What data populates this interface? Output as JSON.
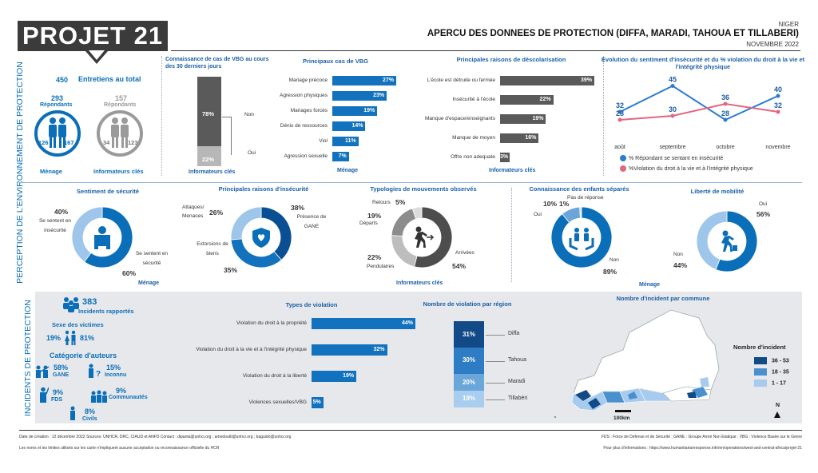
{
  "header": {
    "logo": "PROJET 21",
    "country": "NIGER",
    "title": "APERCU DES DONNEES DE PROTECTION (DIFFA, MARADI, TAHOUA ET TILLABERI)",
    "date": "NOVEMBRE 2022"
  },
  "side_labels": {
    "top": "PERCEPTION DE L'ENVIRONNEMENT DE PROTECTION",
    "bottom": "INCIDENTS DE PROTECTION"
  },
  "entretiens": {
    "total": "450",
    "total_label": "Entretiens au total",
    "menage_count": "293",
    "menage_sub": "Répondants",
    "ki_count": "157",
    "ki_sub": "Répondants",
    "menage_f": "126",
    "menage_m": "167",
    "ki_f": "34",
    "ki_m": "123",
    "menage_label": "Ménage",
    "ki_label": "Informateurs clés"
  },
  "vbg_knowledge": {
    "title": "Connaissance de cas de VBG au cours des 30 derniers jours",
    "non": "78%",
    "non_label": "Non",
    "oui": "22%",
    "oui_label": "Oui",
    "non_value": 78,
    "oui_value": 22,
    "footer": "Informateurs clés"
  },
  "vbg_cases": {
    "title": "Principaux cas de VBG",
    "items": [
      {
        "label": "Mariage précoce",
        "value": 27,
        "text": "27%"
      },
      {
        "label": "Agression physiques",
        "value": 23,
        "text": "23%"
      },
      {
        "label": "Mariages forcés",
        "value": 19,
        "text": "19%"
      },
      {
        "label": "Dénis de ressources",
        "value": 14,
        "text": "14%"
      },
      {
        "label": "Viol",
        "value": 11,
        "text": "11%"
      },
      {
        "label": "Agression sexuelle",
        "value": 7,
        "text": "7%"
      }
    ],
    "footer": "Ménage"
  },
  "descolarisation": {
    "title": "Principales raisons de déscolarisation",
    "items": [
      {
        "label": "L'école est détruite ou fermée",
        "value": 39,
        "text": "39%"
      },
      {
        "label": "Insécurité à l'école",
        "value": 22,
        "text": "22%"
      },
      {
        "label": "Manque d'espace/enseignants",
        "value": 19,
        "text": "19%"
      },
      {
        "label": "Manque de moyen",
        "value": 16,
        "text": "16%"
      },
      {
        "label": "Offre non adequate",
        "value": 3,
        "text": "3%"
      }
    ],
    "footer": "Informateurs clés"
  },
  "chart_data": [
    {
      "type": "line",
      "title": "Evolution du sentiment d'insécurité et du % violation du droit à la vie et l'intégrité physique",
      "categories": [
        "août",
        "septembre",
        "octobre",
        "novembre"
      ],
      "series": [
        {
          "name": "% Répondant se sentant en insécurité",
          "values": [
            32,
            45,
            28,
            40
          ],
          "color": "#2b7bd0"
        },
        {
          "name": "%Violation du droit à la vie et à l'intégrité physique",
          "values": [
            28,
            30,
            36,
            32
          ],
          "color": "#e36680"
        }
      ]
    },
    {
      "type": "pie",
      "title": "Sentiment de sécurité",
      "labels": [
        "Se sentent en insécurité",
        "Se sentent en sécurité"
      ],
      "values": [
        40,
        60
      ]
    },
    {
      "type": "pie",
      "title": "Principales raisons d'insécurité",
      "labels": [
        "Attaques/Menaces",
        "Présence de GANE",
        "Extorsions de biens"
      ],
      "values": [
        26,
        38,
        35
      ]
    },
    {
      "type": "pie",
      "title": "Typologies de mouvements observés",
      "labels": [
        "Retours",
        "Départs",
        "Pendulaires",
        "Arrivées"
      ],
      "values": [
        5,
        19,
        22,
        54
      ]
    },
    {
      "type": "pie",
      "title": "Connaissance des enfants séparés",
      "labels": [
        "Pas de réponse",
        "Oui",
        "Non"
      ],
      "values": [
        1,
        10,
        89
      ]
    },
    {
      "type": "pie",
      "title": "Liberté de mobilité",
      "labels": [
        "Oui",
        "Non"
      ],
      "values": [
        56,
        44
      ]
    },
    {
      "type": "bar",
      "title": "Types de violation",
      "categories": [
        "Violation du droit à la propriété",
        "Violation du droit à la vie et à l'intégrité physique",
        "Violation du droit à la liberté",
        "Violences sexuelles/VBG"
      ],
      "values": [
        44,
        32,
        19,
        5
      ]
    },
    {
      "type": "bar",
      "title": "Nombre de violation par région",
      "categories": [
        "Diffa",
        "Tahoua",
        "Maradi",
        "Tillabéri"
      ],
      "values": [
        31,
        30,
        20,
        19
      ]
    }
  ],
  "donuts": {
    "securite": {
      "title": "Sentiment de sécurité",
      "l1": "40%",
      "l1_text": "Se sentent en insécurité",
      "l2": "60%",
      "l2_text": "Se sentent en sécurité",
      "footer": "Ménage"
    },
    "raisons": {
      "title": "Principales raisons d'insécurité",
      "a": "26%",
      "a_text": "Attaques/ Menaces",
      "b": "38%",
      "b_text": "Présence de GANE",
      "c": "35%",
      "c_text": "Extorsions de biens"
    },
    "mouvements": {
      "title": "Typologies de mouvements observés",
      "r": "5%",
      "r_text": "Retours",
      "d": "19%",
      "d_text": "Départs",
      "p": "22%",
      "p_text": "Pendulaires",
      "a": "54%",
      "a_text": "Arrivées",
      "footer": "Informateurs clés"
    },
    "enfants": {
      "title": "Connaissance des enfants séparés",
      "oui": "10%",
      "oui_text": "Oui",
      "pdr": "1%",
      "pdr_text": "Pas de réponse",
      "non": "89%",
      "non_text": "Non"
    },
    "mobilite": {
      "title": "Liberté de mobilité",
      "oui": "56%",
      "oui_text": "Oui",
      "non": "44%",
      "non_text": "Non",
      "footer": "Ménage"
    }
  },
  "incidents": {
    "count": "383",
    "count_label": "Incidents rapportés",
    "sexe_title": "Sexe des victimes",
    "f": "19%",
    "m": "81%",
    "auteurs_title": "Catégorie d'auteurs",
    "gane": "58%",
    "gane_label": "GANE",
    "inconnu": "15%",
    "inconnu_label": "Inconnu",
    "fds": "9%",
    "fds_label": "FDS",
    "comm": "9%",
    "comm_label": "Communautés",
    "civils": "8%",
    "civils_label": "Civils"
  },
  "violations_titles": {
    "types": "Types de violation",
    "region": "Nombre de violation par région"
  },
  "map": {
    "title": "Nombre d'incident par commune",
    "legend_title": "Nombre d'incident",
    "legend": [
      {
        "label": "36 - 53",
        "color": "#114a86"
      },
      {
        "label": "18 - 35",
        "color": "#4a90cf"
      },
      {
        "label": "1 - 17",
        "color": "#a6cbee"
      }
    ],
    "scale": "100km",
    "north": "N"
  },
  "footer": {
    "left1": "Date de création : 12 décembre 2022     Sources: UNHCR, DRC, CIAUD et ANFD     Contact : dipanta@unhcr.org ; amedoutti@unhcr.org ; baguido@unhcr.org",
    "left2": "Les noms et les limites utilisés sur les carte n'impliquent aucune acceptation ou reconnaissance officielle du HCR",
    "right1": "FDS : Force de Defense et de Sécurité ; GANE : Groupe Armé Non Etatique ; VBG : Violence Basée sur le Genre",
    "right2": "Pour plus d'informations : https://www.humanitarianresponse.info/en/operations/west-and-central-africa/projet-21"
  }
}
